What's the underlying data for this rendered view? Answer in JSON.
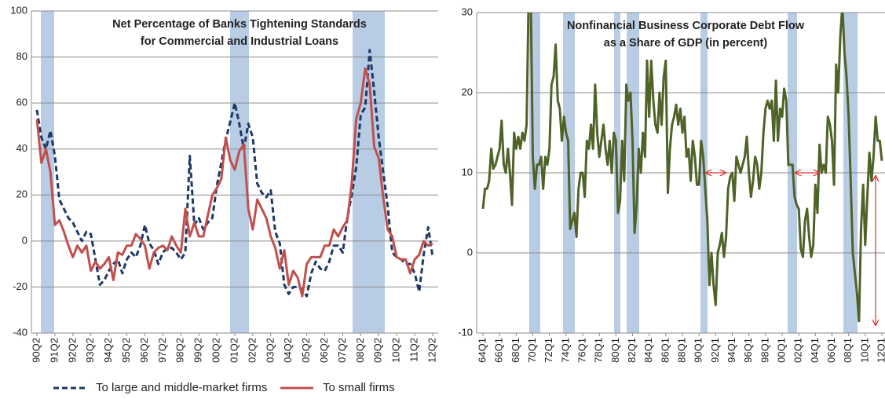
{
  "chart_data": [
    {
      "type": "line",
      "title": [
        "Net Percentage of Banks Tightening Standards",
        "for Commercial and Industrial Loans"
      ],
      "categories": [
        "90Q2",
        null,
        null,
        null,
        "91Q2",
        null,
        null,
        null,
        "92Q2",
        null,
        null,
        null,
        "93Q2",
        null,
        null,
        null,
        "94Q2",
        null,
        null,
        null,
        "95Q2",
        null,
        null,
        null,
        "96Q2",
        null,
        null,
        null,
        "97Q2",
        null,
        null,
        null,
        "98Q2",
        null,
        null,
        null,
        "99Q2",
        null,
        null,
        null,
        "00Q2",
        null,
        null,
        null,
        "01Q2",
        null,
        null,
        null,
        "02Q2",
        null,
        null,
        null,
        "03Q2",
        null,
        null,
        null,
        "04Q2",
        null,
        null,
        null,
        "05Q2",
        null,
        null,
        null,
        "06Q2",
        null,
        null,
        null,
        "07Q2",
        null,
        null,
        null,
        "08Q2",
        null,
        null,
        null,
        "09Q2",
        null,
        null,
        null,
        "10Q2",
        null,
        null,
        null,
        "11Q2",
        null,
        null,
        null,
        "12Q2"
      ],
      "series": [
        {
          "name": "To large and middle-market firms",
          "color": "#1f3864",
          "dashed": true,
          "values": [
            57,
            45,
            40,
            48,
            37,
            18,
            14,
            10,
            8,
            4,
            0,
            4,
            3,
            -8,
            -19,
            -17,
            -13,
            -10,
            -8,
            -14,
            -8,
            -5,
            -7,
            -2,
            7,
            -1,
            -4,
            -10,
            -5,
            -3,
            -3,
            -5,
            -8,
            -5,
            37,
            7,
            10,
            5,
            8,
            10,
            24,
            34,
            44,
            52,
            60,
            51,
            40,
            51,
            45,
            25,
            21,
            19,
            22,
            4,
            -1,
            -19,
            -23,
            -20,
            -20,
            -21,
            -24,
            -14,
            -9,
            -12,
            -13,
            -9,
            -2,
            -2,
            -5,
            10,
            20,
            32,
            55,
            58,
            83,
            65,
            45,
            30,
            15,
            -5,
            -7,
            -8,
            -10,
            -10,
            -14,
            -22,
            -6,
            6,
            -7
          ]
        },
        {
          "name": "To small firms",
          "color": "#c0504d",
          "dashed": false,
          "values": [
            53,
            34,
            40,
            30,
            7,
            9,
            4,
            -2,
            -7,
            -2,
            -5,
            -2,
            -13,
            -9,
            -12,
            -10,
            -7,
            -17,
            -5,
            -6,
            -2,
            -2,
            3,
            1,
            -2,
            -12,
            -5,
            -3,
            -2,
            -4,
            2,
            -2,
            -5,
            14,
            2,
            8,
            2,
            2,
            11,
            20,
            23,
            27,
            45,
            35,
            31,
            39,
            42,
            14,
            5,
            18,
            14,
            10,
            2,
            -3,
            -12,
            -4,
            -19,
            -13,
            -16,
            -24,
            -10,
            -7,
            -7,
            -7,
            -2,
            -2,
            5,
            2,
            6,
            9,
            25,
            53,
            60,
            75,
            68,
            41,
            36,
            19,
            5,
            2,
            -7,
            -8,
            -8,
            -14,
            -8,
            -6,
            0,
            -2,
            -1
          ]
        }
      ],
      "ylim": [
        -40,
        100
      ],
      "yticks": [
        -40,
        -20,
        0,
        20,
        40,
        60,
        80,
        100
      ],
      "grid": true,
      "legend": "bottom"
    },
    {
      "type": "line",
      "title": [
        "Nonfinancial Business Corporate Debt Flow",
        "as a Share of GDP (in percent)"
      ],
      "categories": [
        "64Q1",
        null,
        null,
        null,
        null,
        null,
        null,
        null,
        "66Q1",
        null,
        null,
        null,
        null,
        null,
        null,
        null,
        "68Q1",
        null,
        null,
        null,
        null,
        null,
        null,
        null,
        "70Q1",
        null,
        null,
        null,
        null,
        null,
        null,
        null,
        "72Q1",
        null,
        null,
        null,
        null,
        null,
        null,
        null,
        "74Q1",
        null,
        null,
        null,
        null,
        null,
        null,
        null,
        "76Q1",
        null,
        null,
        null,
        null,
        null,
        null,
        null,
        "78Q1",
        null,
        null,
        null,
        null,
        null,
        null,
        null,
        "80Q1",
        null,
        null,
        null,
        null,
        null,
        null,
        null,
        "82Q1",
        null,
        null,
        null,
        null,
        null,
        null,
        null,
        "84Q1",
        null,
        null,
        null,
        null,
        null,
        null,
        null,
        "86Q1",
        null,
        null,
        null,
        null,
        null,
        null,
        null,
        "88Q1",
        null,
        null,
        null,
        null,
        null,
        null,
        null,
        "90Q1",
        null,
        null,
        null,
        null,
        null,
        null,
        null,
        "92Q1",
        null,
        null,
        null,
        null,
        null,
        null,
        null,
        "94Q1",
        null,
        null,
        null,
        null,
        null,
        null,
        null,
        "96Q1",
        null,
        null,
        null,
        null,
        null,
        null,
        null,
        "98Q1",
        null,
        null,
        null,
        null,
        null,
        null,
        null,
        "00Q1",
        null,
        null,
        null,
        null,
        null,
        null,
        null,
        "02Q1",
        null,
        null,
        null,
        null,
        null,
        null,
        null,
        "04Q1",
        null,
        null,
        null,
        null,
        null,
        null,
        null,
        "06Q1",
        null,
        null,
        null,
        null,
        null,
        null,
        null,
        "08Q1",
        null,
        null,
        null,
        null,
        null,
        null,
        null,
        "10Q1",
        null,
        null,
        null,
        null,
        null,
        null,
        null,
        "12Q1"
      ],
      "series": [
        {
          "color": "#4f6228",
          "dashed": false,
          "values": [
            5.5,
            8,
            8,
            9,
            13,
            10.5,
            11,
            12,
            13,
            16.5,
            11,
            10,
            13,
            10,
            6,
            15,
            13,
            14.5,
            13,
            15,
            14,
            16,
            32,
            32,
            12,
            8,
            11,
            11,
            12,
            8,
            12,
            11,
            13,
            21,
            22,
            26,
            19,
            18,
            14,
            17,
            15,
            14,
            3,
            4,
            5,
            2,
            8,
            10,
            10,
            7,
            14,
            13,
            16,
            13,
            21,
            15,
            12,
            14,
            16,
            13,
            11,
            14,
            10,
            15,
            14,
            5,
            6.5,
            14,
            9,
            21,
            19,
            20,
            14,
            2.5,
            6,
            13,
            10,
            15,
            12,
            24,
            17,
            24,
            19,
            16,
            15,
            20,
            16,
            22,
            24,
            7.5,
            13,
            16,
            17,
            18.5,
            16,
            18,
            15,
            17,
            12,
            13,
            9,
            14,
            12,
            8.5,
            8.5,
            14,
            12,
            8,
            4,
            -4,
            0,
            -4,
            -6.5,
            0,
            1,
            2.5,
            -0.5,
            2,
            8,
            9.5,
            10,
            6.5,
            12,
            11,
            10,
            11,
            12,
            14.5,
            10,
            7,
            9,
            12,
            11,
            8,
            10,
            15,
            18,
            19,
            18,
            19,
            14,
            21.5,
            14,
            18,
            17,
            20.5,
            19,
            11,
            11,
            11,
            7,
            6,
            5.5,
            0.5,
            -0.5,
            4,
            5.5,
            2,
            -0.5,
            1,
            8.5,
            5,
            13.5,
            10,
            11,
            10,
            17,
            16,
            14,
            8.5,
            23.5,
            20,
            27,
            31,
            25,
            22,
            17,
            9,
            0,
            -2.5,
            -5,
            -8.5,
            3,
            8.5,
            1,
            7,
            12.5,
            9,
            12,
            17,
            14,
            14,
            11.5
          ]
        }
      ],
      "ylim": [
        -10,
        30
      ],
      "yticks": [
        -10,
        0,
        10,
        20,
        30
      ],
      "grid": true
    }
  ]
}
